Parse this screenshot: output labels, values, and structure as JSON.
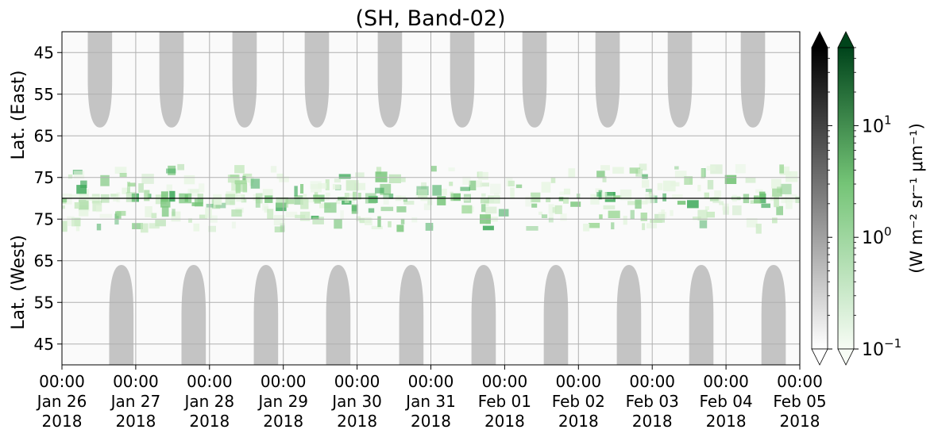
{
  "chart_data": {
    "type": "heatmap",
    "title": "(SH, Band-02)",
    "ylabel_top": "Lat. (East)",
    "ylabel_bottom": "Lat. (West)",
    "y_ticks_top": [
      45,
      55,
      65,
      75
    ],
    "y_ticks_bottom": [
      75,
      65,
      55,
      45
    ],
    "x_ticks": [
      {
        "time": "00:00",
        "date": "Jan 26",
        "year": "2018"
      },
      {
        "time": "00:00",
        "date": "Jan 27",
        "year": "2018"
      },
      {
        "time": "00:00",
        "date": "Jan 28",
        "year": "2018"
      },
      {
        "time": "00:00",
        "date": "Jan 29",
        "year": "2018"
      },
      {
        "time": "00:00",
        "date": "Jan 30",
        "year": "2018"
      },
      {
        "time": "00:00",
        "date": "Jan 31",
        "year": "2018"
      },
      {
        "time": "00:00",
        "date": "Feb 01",
        "year": "2018"
      },
      {
        "time": "00:00",
        "date": "Feb 02",
        "year": "2018"
      },
      {
        "time": "00:00",
        "date": "Feb 03",
        "year": "2018"
      },
      {
        "time": "00:00",
        "date": "Feb 04",
        "year": "2018"
      },
      {
        "time": "00:00",
        "date": "Feb 05",
        "year": "2018"
      }
    ],
    "x_range": [
      "2018-01-26 00:00",
      "2018-02-05 00:00"
    ],
    "lat_range_each_half": [
      40,
      80
    ],
    "grid": true,
    "colorbar_label": "(W m⁻² sr⁻¹ μm⁻¹)",
    "colorbar_scale": "log",
    "colorbar_range": [
      0.1,
      50
    ],
    "colorbar_ticks": [
      {
        "value": 0.1,
        "base": "10",
        "exp": "−1"
      },
      {
        "value": 1,
        "base": "10",
        "exp": "0"
      },
      {
        "value": 10,
        "base": "10",
        "exp": "1"
      }
    ],
    "colormaps": [
      {
        "name": "gray",
        "low": "#ffffff",
        "high": "#000000"
      },
      {
        "name": "green",
        "low": "#f7fcf5",
        "high": "#00441b"
      }
    ],
    "sunlit_day_starts_east": [
      0.35,
      1.32,
      2.31,
      3.29,
      4.28,
      5.26,
      6.24,
      7.23,
      8.21,
      9.2
    ],
    "sunlit_day_starts_west": [
      0.64,
      1.62,
      2.6,
      3.58,
      4.57,
      5.55,
      6.53,
      7.52,
      8.5,
      9.48
    ],
    "sunlit_width_days": 0.33,
    "sunlit_lat_limit_east": 63,
    "sunlit_lat_limit_west": 64,
    "colors": {
      "daylight": "#c4c4c4",
      "green_peak": "#41ab5d"
    }
  }
}
